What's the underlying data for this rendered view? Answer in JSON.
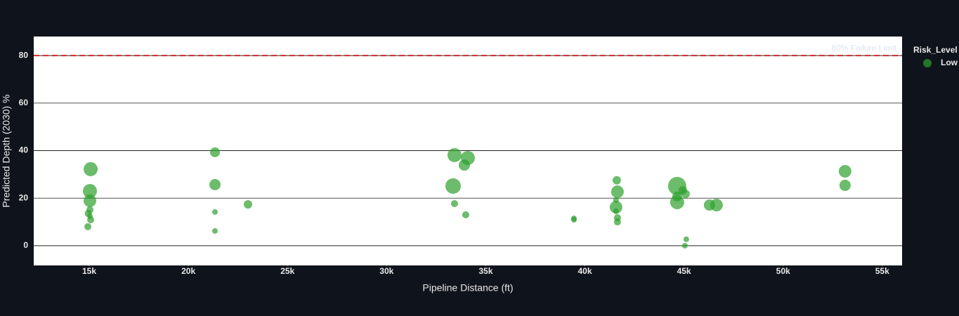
{
  "chart_data": {
    "type": "scatter",
    "x_label": "Pipeline Distance (ft)",
    "y_label": "Predicted Depth (2030) %",
    "legend_title": "Risk_Level",
    "legend": "right",
    "grid": true,
    "threshold": {
      "value": 80,
      "label": "80% Failure Limit",
      "color": "#d62728"
    },
    "xlim": [
      12200,
      56000
    ],
    "ylim": [
      -8.3,
      88
    ],
    "xticks": [
      {
        "value": 15000,
        "label": "15k"
      },
      {
        "value": 20000,
        "label": "20k"
      },
      {
        "value": 25000,
        "label": "25k"
      },
      {
        "value": 30000,
        "label": "30k"
      },
      {
        "value": 35000,
        "label": "35k"
      },
      {
        "value": 40000,
        "label": "40k"
      },
      {
        "value": 45000,
        "label": "45k"
      },
      {
        "value": 50000,
        "label": "50k"
      },
      {
        "value": 55000,
        "label": "55k"
      }
    ],
    "yticks": [
      0,
      20,
      40,
      60,
      80
    ],
    "series": [
      {
        "name": "Low",
        "color": "#2ca02c",
        "x": [
          15071,
          15035,
          15035,
          15035,
          14950,
          15035,
          15071,
          14930,
          21342,
          21342,
          21342,
          21342,
          23007,
          33424,
          34097,
          33920,
          33353,
          33424,
          33990,
          39448,
          39448,
          41608,
          41643,
          41572,
          41572,
          41572,
          41643,
          41643,
          44655,
          44655,
          44655,
          44939,
          45081,
          45116,
          45045,
          46285,
          46640,
          53124,
          53124
        ],
        "values": [
          32.2,
          23.0,
          18.9,
          15.1,
          13.6,
          12.4,
          10.9,
          8.0,
          39.3,
          25.7,
          14.2,
          6.2,
          17.4,
          38.1,
          36.9,
          33.9,
          25.1,
          17.7,
          13.0,
          11.5,
          10.9,
          27.5,
          22.7,
          19.2,
          16.2,
          14.5,
          11.8,
          10.0,
          25.1,
          18.3,
          20.7,
          23.3,
          21.8,
          2.7,
          0,
          17.1,
          17.1,
          31.3,
          25.4
        ],
        "sizes": [
          20,
          20,
          18,
          10,
          10,
          8,
          10,
          10,
          14,
          16,
          8,
          8,
          12,
          20,
          20,
          16,
          22,
          10,
          10,
          8,
          8,
          12,
          18,
          8,
          18,
          8,
          10,
          10,
          26,
          20,
          14,
          12,
          12,
          8,
          8,
          16,
          18,
          18,
          16
        ]
      }
    ]
  }
}
